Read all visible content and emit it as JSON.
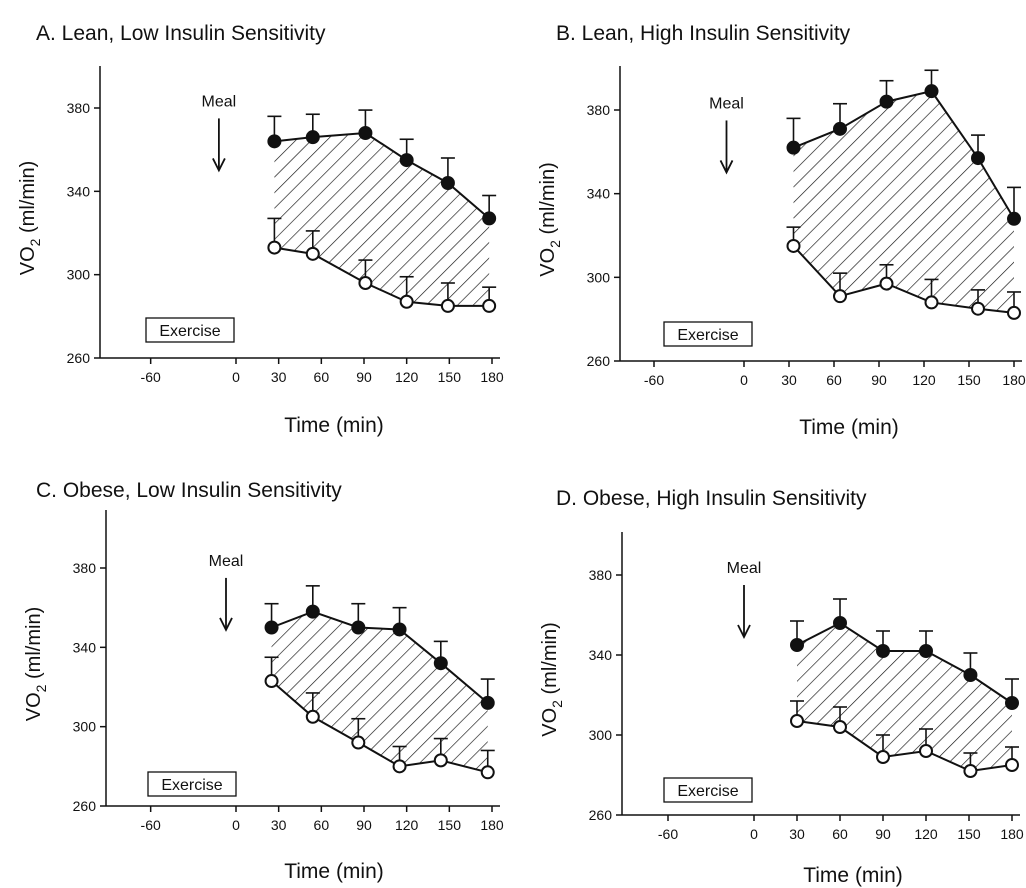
{
  "chart_data": [
    {
      "type": "line",
      "title": "A. Lean, Low Insulin Sensitivity",
      "xlabel": "Time (min)",
      "ylabel_main": "VO",
      "ylabel_sub": "2",
      "ylabel_unit": " (ml/min)",
      "xlim": [
        -90,
        180
      ],
      "ylim": [
        260,
        400
      ],
      "xticks": [
        -60,
        0,
        30,
        60,
        90,
        120,
        150,
        180
      ],
      "yticks": [
        260,
        300,
        340,
        380
      ],
      "annotation_meal": "Meal",
      "meal_x": -5,
      "exercise_label": "Exercise",
      "series": [
        {
          "marker": "filled",
          "x": [
            27,
            54,
            91,
            120,
            149,
            178
          ],
          "y": [
            364,
            366,
            368,
            355,
            344,
            327
          ],
          "err": [
            12,
            11,
            11,
            10,
            12,
            11
          ]
        },
        {
          "marker": "open",
          "x": [
            27,
            54,
            91,
            120,
            149,
            178
          ],
          "y": [
            313,
            310,
            296,
            287,
            285,
            285
          ],
          "err": [
            14,
            11,
            11,
            12,
            11,
            9
          ]
        }
      ]
    },
    {
      "type": "line",
      "title": "B. Lean, High Insulin Sensitivity",
      "xlabel": "Time (min)",
      "ylabel_main": "VO",
      "ylabel_sub": "2",
      "ylabel_unit": " (ml/min)",
      "xlim": [
        -90,
        180
      ],
      "ylim": [
        260,
        400
      ],
      "xticks": [
        -60,
        0,
        30,
        60,
        90,
        120,
        150,
        180
      ],
      "yticks": [
        260,
        300,
        340,
        380
      ],
      "annotation_meal": "Meal",
      "meal_x": -5,
      "exercise_label": "Exercise",
      "series": [
        {
          "marker": "filled",
          "x": [
            33,
            64,
            95,
            125,
            156,
            180
          ],
          "y": [
            362,
            371,
            384,
            389,
            357,
            328
          ],
          "err": [
            14,
            12,
            10,
            10,
            11,
            15
          ]
        },
        {
          "marker": "open",
          "x": [
            33,
            64,
            95,
            125,
            156,
            180
          ],
          "y": [
            315,
            291,
            297,
            288,
            285,
            283
          ],
          "err": [
            9,
            11,
            9,
            11,
            9,
            10
          ]
        }
      ]
    },
    {
      "type": "line",
      "title": "C. Obese, Low Insulin Sensitivity",
      "xlabel": "Time (min)",
      "ylabel_main": "VO",
      "ylabel_sub": "2",
      "ylabel_unit": " (ml/min)",
      "xlim": [
        -90,
        180
      ],
      "ylim": [
        260,
        400
      ],
      "xticks": [
        -60,
        0,
        30,
        60,
        90,
        120,
        150,
        180
      ],
      "yticks": [
        260,
        300,
        340,
        380
      ],
      "annotation_meal": "Meal",
      "meal_x": 0,
      "exercise_label": "Exercise",
      "series": [
        {
          "marker": "filled",
          "x": [
            25,
            54,
            86,
            115,
            144,
            177
          ],
          "y": [
            350,
            358,
            350,
            349,
            332,
            312
          ],
          "err": [
            12,
            13,
            12,
            11,
            11,
            12
          ]
        },
        {
          "marker": "open",
          "x": [
            25,
            54,
            86,
            115,
            144,
            177
          ],
          "y": [
            323,
            305,
            292,
            280,
            283,
            277
          ],
          "err": [
            12,
            12,
            12,
            10,
            11,
            11
          ]
        }
      ]
    },
    {
      "type": "line",
      "title": "D. Obese, High Insulin Sensitivity",
      "xlabel": "Time (min)",
      "ylabel_main": "VO",
      "ylabel_sub": "2",
      "ylabel_unit": " (ml/min)",
      "xlim": [
        -90,
        180
      ],
      "ylim": [
        260,
        400
      ],
      "xticks": [
        -60,
        0,
        30,
        60,
        90,
        120,
        150,
        180
      ],
      "yticks": [
        260,
        300,
        340,
        380
      ],
      "annotation_meal": "Meal",
      "meal_x": 0,
      "exercise_label": "Exercise",
      "series": [
        {
          "marker": "filled",
          "x": [
            30,
            60,
            90,
            120,
            151,
            180
          ],
          "y": [
            345,
            356,
            342,
            342,
            330,
            316
          ],
          "err": [
            12,
            12,
            10,
            10,
            11,
            12
          ]
        },
        {
          "marker": "open",
          "x": [
            30,
            60,
            90,
            120,
            151,
            180
          ],
          "y": [
            307,
            304,
            289,
            292,
            282,
            285
          ],
          "err": [
            10,
            10,
            11,
            11,
            9,
            9
          ]
        }
      ]
    }
  ]
}
